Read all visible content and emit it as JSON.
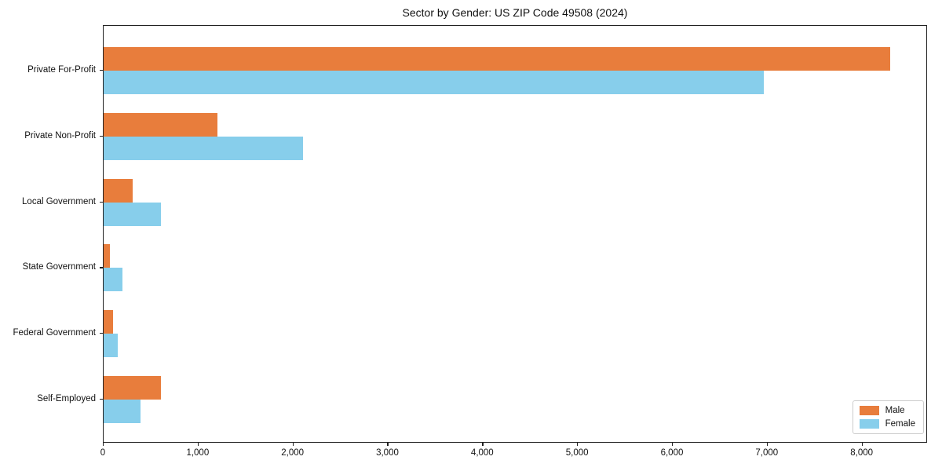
{
  "chart_data": {
    "type": "bar",
    "orientation": "horizontal",
    "title": "Sector by Gender: US ZIP Code 49508 (2024)",
    "categories": [
      "Private For-Profit",
      "Private Non-Profit",
      "Local Government",
      "State Government",
      "Federal Government",
      "Self-Employed"
    ],
    "series": [
      {
        "name": "Male",
        "color": "#E87D3C",
        "values": [
          8290,
          1200,
          310,
          65,
          100,
          605
        ]
      },
      {
        "name": "Female",
        "color": "#87CEEB",
        "values": [
          6960,
          2100,
          605,
          200,
          145,
          385
        ]
      }
    ],
    "xlabel": "",
    "ylabel": "",
    "xlim": [
      0,
      8690
    ],
    "xticks": [
      0,
      1000,
      2000,
      3000,
      4000,
      5000,
      6000,
      7000,
      8000
    ],
    "xtick_labels": [
      "0",
      "1,000",
      "2,000",
      "3,000",
      "4,000",
      "5,000",
      "6,000",
      "7,000",
      "8,000"
    ],
    "grid": "off",
    "legend_position": "lower-right",
    "spine_color": "#222222",
    "background_color": "#ffffff"
  }
}
